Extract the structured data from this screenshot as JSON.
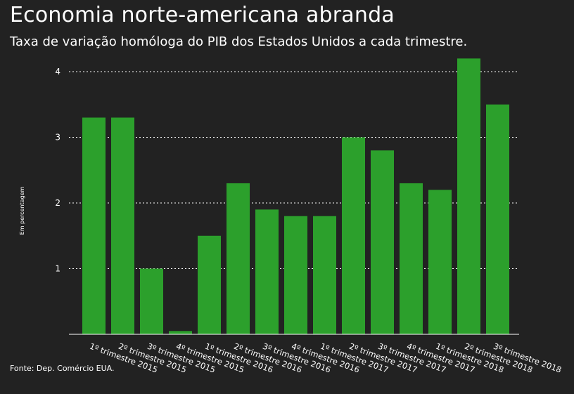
{
  "header": {
    "title": "Economia norte-americana abranda",
    "subtitle": "Taxa de variação homóloga do PIB dos Estados Unidos a cada trimestre."
  },
  "footer": {
    "source": "Fonte: Dep. Comércio EUA."
  },
  "colors": {
    "background": "#222222",
    "bar": "#2ca02c",
    "text": "#ffffff",
    "grid": "#ffffff"
  },
  "chart_data": {
    "type": "bar",
    "title": "Economia norte-americana abranda",
    "subtitle": "Taxa de variação homóloga do PIB dos Estados Unidos a cada trimestre.",
    "xlabel": "",
    "ylabel": "Em percentagem",
    "categories": [
      "1º trimestre 2015",
      "2º trimestre 2015",
      "3º trimestre 2015",
      "4º trimestre 2015",
      "1º trimestre 2016",
      "2º trimestre 2016",
      "3º trimestre 2016",
      "4º trimestre 2016",
      "1º trimestre 2017",
      "2º trimestre 2017",
      "3º trimestre 2017",
      "4º trimestre 2017",
      "1º trimestre 2018",
      "2º trimestre 2018",
      "3º trimestre 2018"
    ],
    "values": [
      3.3,
      3.3,
      1.0,
      0.05,
      1.5,
      2.3,
      1.9,
      1.8,
      1.8,
      3.0,
      2.8,
      2.3,
      2.2,
      4.2,
      3.5
    ],
    "yticks": [
      1,
      2,
      3,
      4
    ],
    "ylim": [
      0,
      4.4
    ],
    "grid": true,
    "legend": "none"
  }
}
